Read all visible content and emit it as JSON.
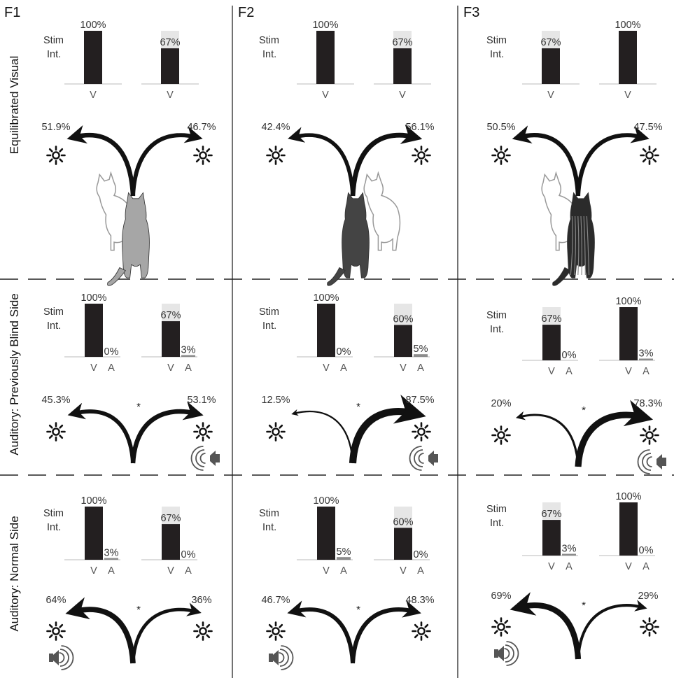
{
  "columns": [
    "F1",
    "F2",
    "F3"
  ],
  "rows": [
    "Equilibrated Visual",
    "Auditory: Previously Blind Side",
    "Auditory: Normal Side"
  ],
  "stim_label_line1": "Stim",
  "stim_label_line2": "Int.",
  "axis_v": "V",
  "axis_a": "A",
  "significance_mark": "*",
  "colors": {
    "bar_visual": "#231f20",
    "bar_auditory": "#8c8c8c",
    "bar_background": "#e6e6e6",
    "arrow": "#111111"
  },
  "panels": [
    [
      {
        "bars": [
          {
            "v": 100
          },
          {
            "v": 67
          }
        ],
        "choice": {
          "left": 51.9,
          "right": 46.7
        },
        "cat_side": "right",
        "cat_shade": "gray"
      },
      {
        "bars": [
          {
            "v": 100
          },
          {
            "v": 67
          }
        ],
        "choice": {
          "left": 42.4,
          "right": 56.1
        },
        "cat_side": "left",
        "cat_shade": "dark"
      },
      {
        "bars": [
          {
            "v": 67
          },
          {
            "v": 100
          }
        ],
        "choice": {
          "left": 50.5,
          "right": 47.5
        },
        "cat_side": "right",
        "cat_shade": "tabby"
      }
    ],
    [
      {
        "bars": [
          {
            "v": 100,
            "a": 0
          },
          {
            "v": 67,
            "a": 3
          }
        ],
        "choice": {
          "left": 45.3,
          "right": 53.1
        },
        "speaker_side": "right"
      },
      {
        "bars": [
          {
            "v": 100,
            "a": 0
          },
          {
            "v": 60,
            "a": 5
          }
        ],
        "choice": {
          "left": 12.5,
          "right": 87.5
        },
        "speaker_side": "right"
      },
      {
        "bars": [
          {
            "v": 67,
            "a": 0
          },
          {
            "v": 100,
            "a": 3
          }
        ],
        "choice": {
          "left": 20,
          "right": 78.3
        },
        "speaker_side": "right"
      }
    ],
    [
      {
        "bars": [
          {
            "v": 100,
            "a": 3
          },
          {
            "v": 67,
            "a": 0
          }
        ],
        "choice": {
          "left": 64,
          "right": 36
        },
        "speaker_side": "left"
      },
      {
        "bars": [
          {
            "v": 100,
            "a": 5
          },
          {
            "v": 60,
            "a": 0
          }
        ],
        "choice": {
          "left": 46.7,
          "right": 48.3
        },
        "speaker_side": "left"
      },
      {
        "bars": [
          {
            "v": 67,
            "a": 3
          },
          {
            "v": 100,
            "a": 0
          }
        ],
        "choice": {
          "left": 69,
          "right": 29
        },
        "speaker_side": "left"
      }
    ]
  ]
}
